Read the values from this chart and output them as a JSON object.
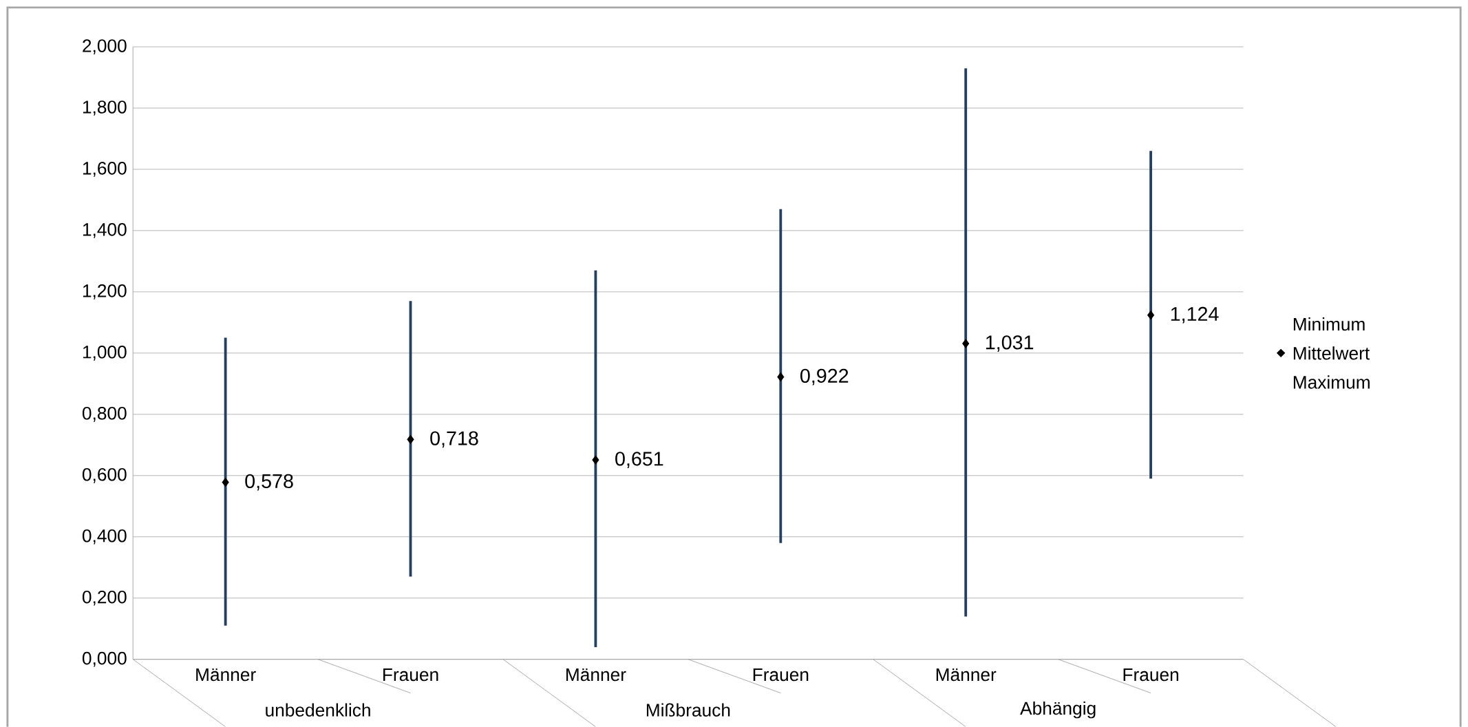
{
  "chart_data": {
    "type": "scatter",
    "categories": [
      "Männer",
      "Frauen",
      "Männer",
      "Frauen",
      "Männer",
      "Frauen"
    ],
    "annotations": [
      "unbedenklich",
      "Mißbrauch",
      "Abhängig",
      "Minimum",
      "Maximum"
    ],
    "series": [
      {
        "name": "Mittelwert",
        "color": "#000000",
        "marker": "diamond",
        "values": [
          0.578,
          0.718,
          0.651,
          0.922,
          1.031,
          1.124
        ],
        "value_labels": [
          "0,578",
          "0,718",
          "0,651",
          "0,922",
          "1,031",
          "1,124"
        ],
        "errors": [
          [
            0.11,
            1.05
          ],
          [
            0.27,
            1.17
          ],
          [
            0.04,
            1.27
          ],
          [
            0.38,
            1.47
          ],
          [
            0.14,
            1.93
          ],
          [
            0.59,
            1.66
          ]
        ]
      }
    ],
    "ylim": [
      0,
      2
    ],
    "yticks": [
      {
        "value": 0,
        "label": "0,000"
      },
      {
        "value": 0.2,
        "label": "0,200"
      },
      {
        "value": 0.4,
        "label": "0,400"
      },
      {
        "value": 0.6,
        "label": "0,600"
      },
      {
        "value": 0.8,
        "label": "0,800"
      },
      {
        "value": 1,
        "label": "1,000"
      },
      {
        "value": 1.2,
        "label": "1,200"
      },
      {
        "value": 1.4,
        "label": "1,400"
      },
      {
        "value": 1.6,
        "label": "1,600"
      },
      {
        "value": 1.8,
        "label": "1,800"
      },
      {
        "value": 2,
        "label": "2,000"
      }
    ],
    "grid": "y",
    "legend": "right"
  }
}
